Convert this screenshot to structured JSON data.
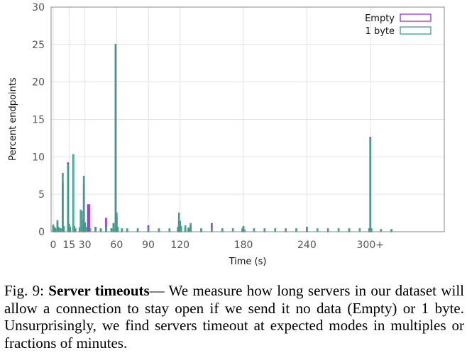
{
  "chart_data": {
    "type": "bar",
    "title": "",
    "xlabel": "Time (s)",
    "ylabel": "Percent endpoints",
    "xlim": [
      -2,
      370
    ],
    "ylim": [
      0,
      30
    ],
    "yticks": [
      0,
      5,
      10,
      15,
      20,
      25,
      30
    ],
    "xticks": [
      {
        "value": 0,
        "label": "0"
      },
      {
        "value": 15,
        "label": "15"
      },
      {
        "value": 30,
        "label": "30"
      },
      {
        "value": 60,
        "label": "60"
      },
      {
        "value": 90,
        "label": "90"
      },
      {
        "value": 120,
        "label": "120"
      },
      {
        "value": 180,
        "label": "180"
      },
      {
        "value": 240,
        "label": "240"
      },
      {
        "value": 300,
        "label": "300+"
      }
    ],
    "grid": true,
    "legend_position": "top-right",
    "series": [
      {
        "name": "Empty",
        "color": "#9b30d9",
        "points": [
          [
            0,
            0.7
          ],
          [
            1,
            0.5
          ],
          [
            2,
            0.2
          ],
          [
            4,
            1.2
          ],
          [
            5,
            0.4
          ],
          [
            7,
            0.3
          ],
          [
            9,
            6.5
          ],
          [
            10,
            0.5
          ],
          [
            14,
            9.2
          ],
          [
            15,
            0.9
          ],
          [
            16,
            0.4
          ],
          [
            20,
            0.5
          ],
          [
            21,
            0.3
          ],
          [
            25,
            0.3
          ],
          [
            28,
            0.5
          ],
          [
            29,
            6.3
          ],
          [
            30,
            1.0
          ],
          [
            31,
            0.5
          ],
          [
            33,
            3.6
          ],
          [
            34,
            3.6
          ],
          [
            40,
            0.6
          ],
          [
            45,
            0.3
          ],
          [
            50,
            1.8
          ],
          [
            55,
            0.3
          ],
          [
            57,
            1.0
          ],
          [
            59,
            25.0
          ],
          [
            60,
            2.0
          ],
          [
            61,
            0.5
          ],
          [
            65,
            0.3
          ],
          [
            70,
            0.2
          ],
          [
            80,
            0.2
          ],
          [
            90,
            0.8
          ],
          [
            100,
            0.2
          ],
          [
            110,
            0.2
          ],
          [
            118,
            0.4
          ],
          [
            119,
            1.5
          ],
          [
            120,
            1.0
          ],
          [
            121,
            0.5
          ],
          [
            125,
            0.5
          ],
          [
            128,
            0.3
          ],
          [
            130,
            0.8
          ],
          [
            140,
            0.2
          ],
          [
            150,
            1.1
          ],
          [
            160,
            0.2
          ],
          [
            179,
            0.3
          ],
          [
            180,
            0.6
          ],
          [
            181,
            0.2
          ],
          [
            200,
            0.2
          ],
          [
            220,
            0.1
          ],
          [
            240,
            0.6
          ],
          [
            260,
            0.1
          ],
          [
            280,
            0.1
          ],
          [
            299,
            0.3
          ],
          [
            300,
            12.6
          ],
          [
            301,
            0.3
          ],
          [
            320,
            0.1
          ]
        ]
      },
      {
        "name": "1 byte",
        "color": "#3aa08a",
        "points": [
          [
            0,
            0.9
          ],
          [
            1,
            0.6
          ],
          [
            2,
            0.4
          ],
          [
            4,
            1.5
          ],
          [
            5,
            0.6
          ],
          [
            7,
            0.4
          ],
          [
            9,
            7.8
          ],
          [
            10,
            0.7
          ],
          [
            14,
            9.0
          ],
          [
            15,
            1.0
          ],
          [
            16,
            0.6
          ],
          [
            19,
            10.3
          ],
          [
            20,
            0.7
          ],
          [
            21,
            0.4
          ],
          [
            25,
            0.5
          ],
          [
            26,
            2.9
          ],
          [
            27,
            2.7
          ],
          [
            28,
            1.6
          ],
          [
            29,
            7.4
          ],
          [
            30,
            1.2
          ],
          [
            31,
            0.6
          ],
          [
            35,
            0.4
          ],
          [
            40,
            0.5
          ],
          [
            45,
            0.4
          ],
          [
            50,
            0.6
          ],
          [
            55,
            0.4
          ],
          [
            57,
            1.1
          ],
          [
            59,
            25.0
          ],
          [
            60,
            2.5
          ],
          [
            61,
            0.6
          ],
          [
            65,
            0.4
          ],
          [
            70,
            0.4
          ],
          [
            80,
            0.4
          ],
          [
            90,
            0.5
          ],
          [
            100,
            0.4
          ],
          [
            110,
            0.4
          ],
          [
            118,
            0.6
          ],
          [
            119,
            2.5
          ],
          [
            120,
            1.4
          ],
          [
            121,
            0.7
          ],
          [
            125,
            0.8
          ],
          [
            128,
            0.5
          ],
          [
            130,
            1.1
          ],
          [
            140,
            0.4
          ],
          [
            150,
            0.5
          ],
          [
            160,
            0.4
          ],
          [
            170,
            0.4
          ],
          [
            179,
            0.4
          ],
          [
            180,
            0.7
          ],
          [
            190,
            0.4
          ],
          [
            200,
            0.4
          ],
          [
            210,
            0.4
          ],
          [
            220,
            0.4
          ],
          [
            230,
            0.4
          ],
          [
            240,
            0.6
          ],
          [
            250,
            0.4
          ],
          [
            260,
            0.4
          ],
          [
            270,
            0.4
          ],
          [
            280,
            0.4
          ],
          [
            290,
            0.4
          ],
          [
            299,
            0.4
          ],
          [
            300,
            12.4
          ],
          [
            301,
            0.4
          ],
          [
            310,
            0.3
          ],
          [
            320,
            0.3
          ]
        ]
      }
    ]
  },
  "caption": {
    "fig": "Fig. 9:",
    "title": "Server timeouts",
    "text": "— We measure how long servers in our dataset will allow a connection to stay open if we send it no data (Empty) or 1 byte. Unsurprisingly, we find servers timeout at expected modes in multiples or fractions of minutes."
  }
}
